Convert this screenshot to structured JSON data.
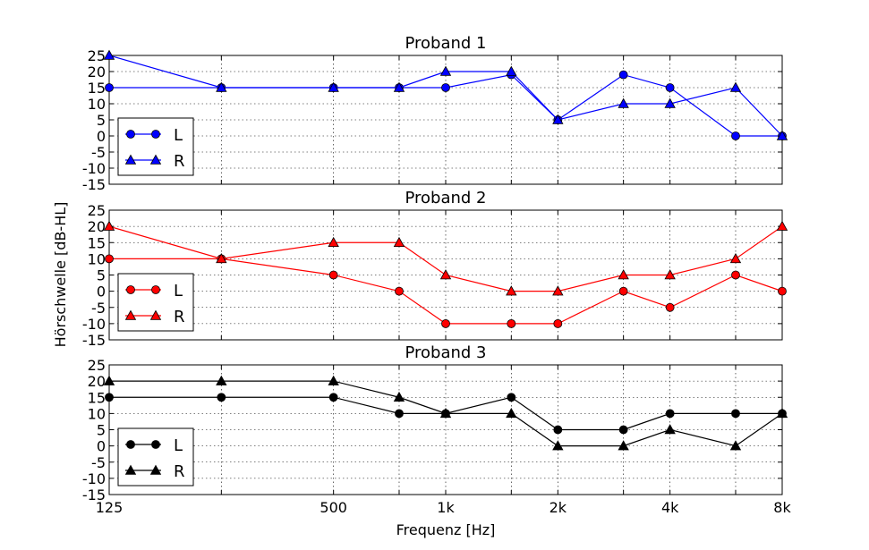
{
  "figure": {
    "xlabel": "Frequenz [Hz]",
    "ylabel": "Hörschwelle [dB-HL]"
  },
  "chart_data": [
    {
      "type": "line",
      "title": "Proband 1",
      "color": "#0000ff",
      "x": [
        125,
        250,
        500,
        750,
        1000,
        1500,
        2000,
        3000,
        4000,
        6000,
        8000
      ],
      "xscale": "log",
      "xticks": [
        125,
        500,
        1000,
        2000,
        4000,
        8000
      ],
      "xticklabels": [
        "125",
        "500",
        "1k",
        "2k",
        "4k",
        "8k"
      ],
      "ylim": [
        -15,
        25
      ],
      "yticks": [
        25,
        20,
        15,
        10,
        5,
        0,
        -5,
        -10,
        -15
      ],
      "grid": true,
      "legend": "lower-left",
      "series": [
        {
          "name": "L",
          "marker": "circle",
          "values": [
            15,
            15,
            15,
            15,
            15,
            19,
            5,
            19,
            15,
            0,
            0
          ]
        },
        {
          "name": "R",
          "marker": "triangle",
          "values": [
            25,
            15,
            15,
            15,
            20,
            20,
            5,
            10,
            10,
            15,
            0
          ]
        }
      ]
    },
    {
      "type": "line",
      "title": "Proband 2",
      "color": "#ff0000",
      "x": [
        125,
        250,
        500,
        750,
        1000,
        1500,
        2000,
        3000,
        4000,
        6000,
        8000
      ],
      "xscale": "log",
      "xticks": [
        125,
        500,
        1000,
        2000,
        4000,
        8000
      ],
      "xticklabels": [
        "125",
        "500",
        "1k",
        "2k",
        "4k",
        "8k"
      ],
      "ylim": [
        -15,
        25
      ],
      "yticks": [
        25,
        20,
        15,
        10,
        5,
        0,
        -5,
        -10,
        -15
      ],
      "grid": true,
      "legend": "lower-left",
      "series": [
        {
          "name": "L",
          "marker": "circle",
          "values": [
            10,
            10,
            5,
            0,
            -10,
            -10,
            -10,
            0,
            -5,
            5,
            0
          ]
        },
        {
          "name": "R",
          "marker": "triangle",
          "values": [
            20,
            10,
            15,
            15,
            5,
            0,
            0,
            5,
            5,
            10,
            20
          ]
        }
      ]
    },
    {
      "type": "line",
      "title": "Proband 3",
      "color": "#000000",
      "x": [
        125,
        250,
        500,
        750,
        1000,
        1500,
        2000,
        3000,
        4000,
        6000,
        8000
      ],
      "xscale": "log",
      "xticks": [
        125,
        500,
        1000,
        2000,
        4000,
        8000
      ],
      "xticklabels": [
        "125",
        "500",
        "1k",
        "2k",
        "4k",
        "8k"
      ],
      "ylim": [
        -15,
        25
      ],
      "yticks": [
        25,
        20,
        15,
        10,
        5,
        0,
        -5,
        -10,
        -15
      ],
      "grid": true,
      "legend": "lower-left",
      "series": [
        {
          "name": "L",
          "marker": "circle",
          "values": [
            15,
            15,
            15,
            10,
            10,
            15,
            5,
            5,
            10,
            10,
            10
          ]
        },
        {
          "name": "R",
          "marker": "triangle",
          "values": [
            20,
            20,
            20,
            15,
            10,
            10,
            0,
            0,
            5,
            0,
            10
          ]
        }
      ]
    }
  ]
}
